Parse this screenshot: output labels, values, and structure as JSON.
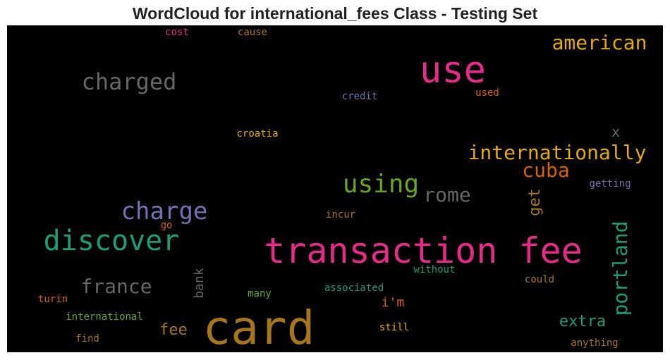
{
  "chart_data": {
    "type": "wordcloud",
    "title": "WordCloud for international_fees Class - Testing Set",
    "background": "#000000",
    "palette": [
      "#E7298A",
      "#A6761D",
      "#666666",
      "#1B9E77",
      "#7570B3",
      "#66A61E",
      "#E6AB02",
      "#D95F02"
    ],
    "words": [
      {
        "text": "card",
        "color": "#A6761D",
        "orientation": "horizontal"
      },
      {
        "text": "transaction fee",
        "color": "#E7298A",
        "orientation": "horizontal"
      },
      {
        "text": "use",
        "color": "#E7298A",
        "orientation": "horizontal"
      },
      {
        "text": "discover",
        "color": "#1B9E77",
        "orientation": "horizontal"
      },
      {
        "text": "charged",
        "color": "#666666",
        "orientation": "horizontal"
      },
      {
        "text": "charge",
        "color": "#7570B3",
        "orientation": "horizontal"
      },
      {
        "text": "using",
        "color": "#66A61E",
        "orientation": "horizontal"
      },
      {
        "text": "internationally",
        "color": "#E6AB02",
        "orientation": "horizontal"
      },
      {
        "text": "american",
        "color": "#E6AB02",
        "orientation": "horizontal"
      },
      {
        "text": "france",
        "color": "#666666",
        "orientation": "horizontal"
      },
      {
        "text": "rome",
        "color": "#666666",
        "orientation": "horizontal"
      },
      {
        "text": "cuba",
        "color": "#D95F02",
        "orientation": "horizontal"
      },
      {
        "text": "portland",
        "color": "#1B9E77",
        "orientation": "vertical"
      },
      {
        "text": "extra",
        "color": "#1B9E77",
        "orientation": "horizontal"
      },
      {
        "text": "fee",
        "color": "#A6761D",
        "orientation": "horizontal"
      },
      {
        "text": "get",
        "color": "#A6761D",
        "orientation": "vertical"
      },
      {
        "text": "x",
        "color": "#666666",
        "orientation": "horizontal"
      },
      {
        "text": "bank",
        "color": "#666666",
        "orientation": "vertical"
      },
      {
        "text": "i'm",
        "color": "#D95F02",
        "orientation": "horizontal"
      },
      {
        "text": "credit",
        "color": "#7570B3",
        "orientation": "horizontal"
      },
      {
        "text": "used",
        "color": "#D95F02",
        "orientation": "horizontal"
      },
      {
        "text": "croatia",
        "color": "#E6AB02",
        "orientation": "horizontal"
      },
      {
        "text": "cost",
        "color": "#E7298A",
        "orientation": "horizontal"
      },
      {
        "text": "cause",
        "color": "#A6761D",
        "orientation": "horizontal"
      },
      {
        "text": "getting",
        "color": "#7570B3",
        "orientation": "horizontal"
      },
      {
        "text": "incur",
        "color": "#A6761D",
        "orientation": "horizontal"
      },
      {
        "text": "go",
        "color": "#D95F02",
        "orientation": "horizontal"
      },
      {
        "text": "without",
        "color": "#1B9E77",
        "orientation": "horizontal"
      },
      {
        "text": "could",
        "color": "#A6761D",
        "orientation": "horizontal"
      },
      {
        "text": "associated",
        "color": "#1B9E77",
        "orientation": "horizontal"
      },
      {
        "text": "many",
        "color": "#66A61E",
        "orientation": "horizontal"
      },
      {
        "text": "turin",
        "color": "#D95F02",
        "orientation": "horizontal"
      },
      {
        "text": "international",
        "color": "#66A61E",
        "orientation": "horizontal"
      },
      {
        "text": "still",
        "color": "#E6AB02",
        "orientation": "horizontal"
      },
      {
        "text": "find",
        "color": "#A6761D",
        "orientation": "horizontal"
      },
      {
        "text": "anything",
        "color": "#A6761D",
        "orientation": "horizontal"
      }
    ]
  }
}
